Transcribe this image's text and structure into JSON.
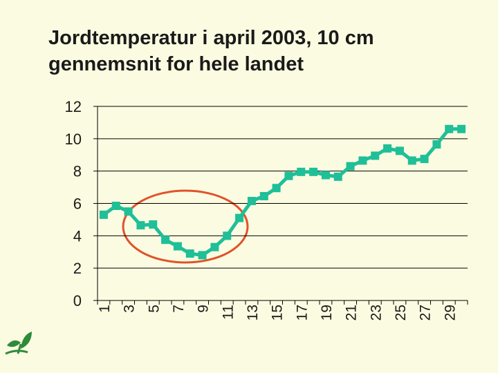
{
  "chart_data": {
    "type": "line",
    "title": "Jordtemperatur i april 2003, 10 cm gennemsnit for hele landet",
    "categories": [
      "1",
      null,
      "3",
      null,
      "5",
      null,
      "7",
      null,
      "9",
      null,
      "11",
      null,
      "13",
      null,
      "15",
      null,
      "17",
      null,
      "19",
      null,
      "21",
      null,
      "23",
      null,
      "25",
      null,
      "27",
      null,
      "29",
      null
    ],
    "series": [
      {
        "color": "#1fbf98",
        "values": [
          5.3,
          5.85,
          5.5,
          4.65,
          4.7,
          3.75,
          3.35,
          2.9,
          2.8,
          3.3,
          4.0,
          5.1,
          6.15,
          6.45,
          6.95,
          7.7,
          7.95,
          7.95,
          7.75,
          7.65,
          8.3,
          8.65,
          8.95,
          9.4,
          9.25,
          8.65,
          8.75,
          9.65,
          10.6,
          10.6
        ]
      }
    ],
    "ylim": [
      0,
      12
    ],
    "yticks": [
      0,
      2,
      4,
      6,
      8,
      10,
      12
    ],
    "grid": true
  }
}
